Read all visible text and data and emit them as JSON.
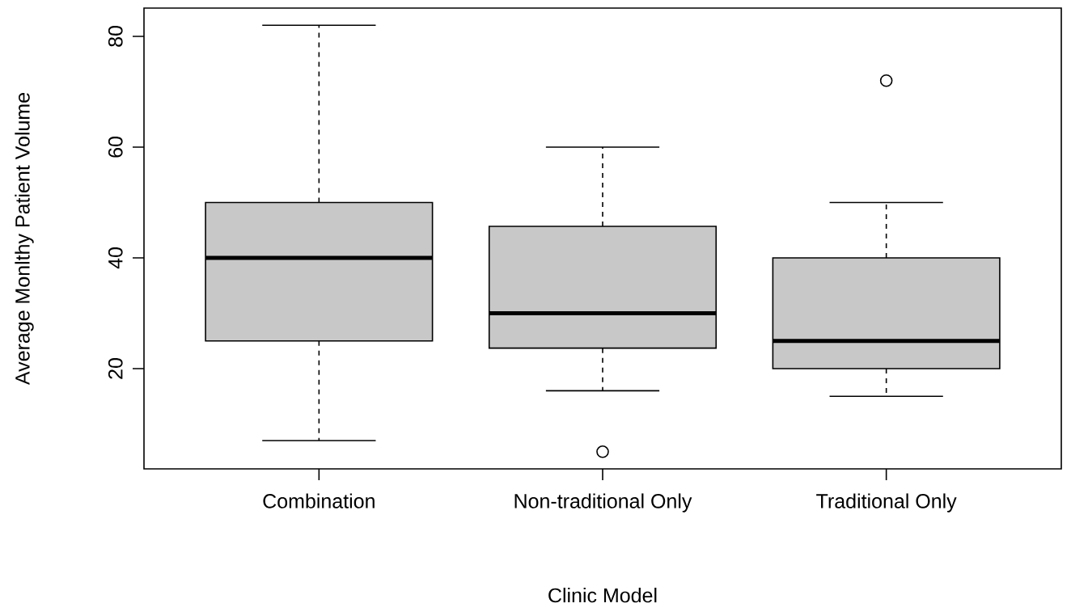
{
  "chart_data": {
    "type": "box",
    "xlabel": "Clinic Model",
    "ylabel": "Average Monlthy Patient Volume",
    "categories": [
      "Combination",
      "Non-traditional Only",
      "Traditional Only"
    ],
    "color": "#c8c8c8",
    "boxes": [
      {
        "low": 7,
        "q1": 25,
        "median": 40,
        "q3": 50,
        "high": 82
      },
      {
        "low": 16,
        "q1": 23.7,
        "median": 30,
        "q3": 45.7,
        "high": 60,
        "outliers": [
          5
        ]
      },
      {
        "low": 15,
        "q1": 20,
        "median": 25,
        "q3": 40,
        "high": 50,
        "outliers": [
          72
        ]
      }
    ],
    "ylim": [
      1.9,
      85.1
    ],
    "yticks": [
      20,
      40,
      60,
      80
    ]
  }
}
